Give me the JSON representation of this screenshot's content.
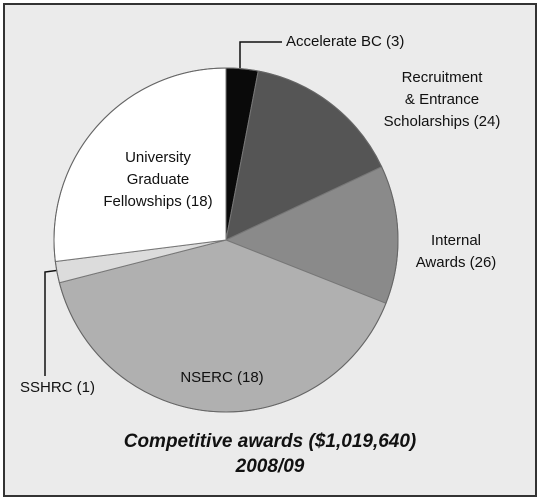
{
  "chart_data": {
    "type": "pie",
    "title": "Competitive awards ($1,019,640)",
    "subtitle": "2008/09",
    "categories": [
      [
        "Accelerate BC (3)"
      ],
      [
        "Recruitment",
        "& Entrance",
        "Scholarships (24)"
      ],
      [
        "Internal",
        "Awards (26)"
      ],
      [
        "NSERC (18)"
      ],
      [
        "SSHRC (1)"
      ],
      [
        "University",
        "Graduate",
        "Fellowships (18)"
      ]
    ],
    "values": [
      3,
      15,
      13,
      40,
      2,
      27
    ],
    "colors": [
      "#0a0a0a",
      "#555555",
      "#8a8a8a",
      "#b0b0b0",
      "#dcdcdc",
      "#ffffff"
    ]
  }
}
